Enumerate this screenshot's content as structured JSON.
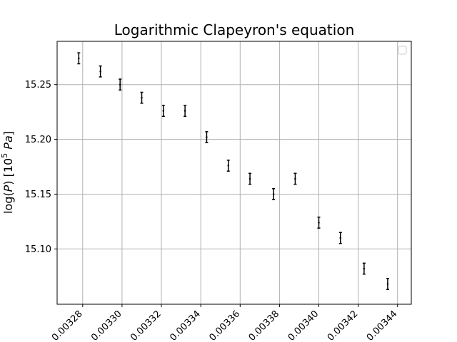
{
  "chart_data": {
    "type": "scatter",
    "title": "Logarithmic Clapeyron's equation",
    "xlabel": "",
    "ylabel": "log(P) [10^5 Pa]",
    "xlim": [
      0.003267,
      0.003447
    ],
    "ylim": [
      15.0495,
      15.2895
    ],
    "grid": true,
    "legend": "top-right (empty)",
    "x_ticks": [
      0.00328,
      0.0033,
      0.00332,
      0.00334,
      0.00336,
      0.00338,
      0.0034,
      0.00342,
      0.00344
    ],
    "x_tick_labels": [
      "0.00328",
      "0.00330",
      "0.00332",
      "0.00334",
      "0.00336",
      "0.00338",
      "0.00340",
      "0.00342",
      "0.00344"
    ],
    "y_ticks": [
      15.1,
      15.15,
      15.2,
      15.25
    ],
    "y_tick_labels": [
      "15.10",
      "15.15",
      "15.20",
      "15.25"
    ],
    "points": [
      {
        "x": 0.003278,
        "y": 15.274,
        "yerr": 0.005,
        "xerr": 4e-07
      },
      {
        "x": 0.003289,
        "y": 15.262,
        "yerr": 0.005,
        "xerr": 4e-07
      },
      {
        "x": 0.003299,
        "y": 15.25,
        "yerr": 0.005,
        "xerr": 4e-07
      },
      {
        "x": 0.00331,
        "y": 15.238,
        "yerr": 0.005,
        "xerr": 4e-07
      },
      {
        "x": 0.003321,
        "y": 15.226,
        "yerr": 0.005,
        "xerr": 4e-07
      },
      {
        "x": 0.003332,
        "y": 15.226,
        "yerr": 0.005,
        "xerr": 4e-07
      },
      {
        "x": 0.003343,
        "y": 15.202,
        "yerr": 0.005,
        "xerr": 4e-07
      },
      {
        "x": 0.003354,
        "y": 15.176,
        "yerr": 0.005,
        "xerr": 4e-07
      },
      {
        "x": 0.003365,
        "y": 15.164,
        "yerr": 0.005,
        "xerr": 4e-07
      },
      {
        "x": 0.003377,
        "y": 15.15,
        "yerr": 0.005,
        "xerr": 4e-07
      },
      {
        "x": 0.003388,
        "y": 15.164,
        "yerr": 0.005,
        "xerr": 4e-07
      },
      {
        "x": 0.0034,
        "y": 15.124,
        "yerr": 0.005,
        "xerr": 4e-07
      },
      {
        "x": 0.003411,
        "y": 15.11,
        "yerr": 0.005,
        "xerr": 4e-07
      },
      {
        "x": 0.003423,
        "y": 15.082,
        "yerr": 0.005,
        "xerr": 4e-07
      },
      {
        "x": 0.003435,
        "y": 15.068,
        "yerr": 0.005,
        "xerr": 4e-07
      }
    ]
  },
  "colors": {
    "marker": "#000000",
    "grid": "#b0b0b0",
    "background": "#ffffff"
  }
}
